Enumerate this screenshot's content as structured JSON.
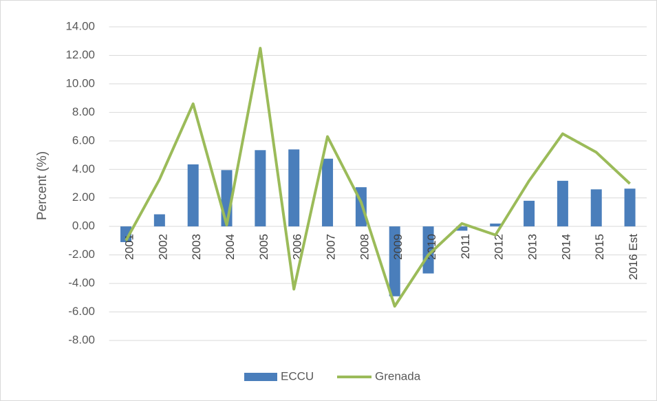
{
  "chart_data": {
    "type": "bar_line",
    "y_label": "Percent (%)",
    "categories": [
      "2001",
      "2002",
      "2003",
      "2004",
      "2005",
      "2006",
      "2007",
      "2008",
      "2009",
      "2010",
      "2011",
      "2012",
      "2013",
      "2014",
      "2015",
      "2016 Est"
    ],
    "series": [
      {
        "name": "ECCU",
        "type": "bar",
        "color": "#4a7ebb",
        "values": [
          -1.1,
          0.85,
          4.35,
          3.95,
          5.35,
          5.4,
          4.75,
          2.75,
          -4.9,
          -3.3,
          -0.3,
          0.2,
          1.8,
          3.2,
          2.6,
          2.65
        ]
      },
      {
        "name": "Grenada",
        "type": "line",
        "color": "#9bbb59",
        "values": [
          -1.0,
          3.3,
          8.6,
          0.1,
          12.5,
          -4.4,
          6.3,
          1.7,
          -5.6,
          -2.0,
          0.2,
          -0.6,
          3.2,
          6.5,
          5.2,
          3.0
        ]
      }
    ],
    "ylim": [
      -8,
      14
    ],
    "yticks": [
      {
        "value": -8,
        "label": "-8.00"
      },
      {
        "value": -6,
        "label": "-6.00"
      },
      {
        "value": -4,
        "label": "-4.00"
      },
      {
        "value": -2,
        "label": "-2.00"
      },
      {
        "value": 0,
        "label": "0.00"
      },
      {
        "value": 2,
        "label": "2.00"
      },
      {
        "value": 4,
        "label": "4.00"
      },
      {
        "value": 6,
        "label": "6.00"
      },
      {
        "value": 8,
        "label": "8.00"
      },
      {
        "value": 10,
        "label": "10.00"
      },
      {
        "value": 12,
        "label": "12.00"
      },
      {
        "value": 14,
        "label": "14.00"
      }
    ],
    "grid": true,
    "legend": "bottom"
  }
}
